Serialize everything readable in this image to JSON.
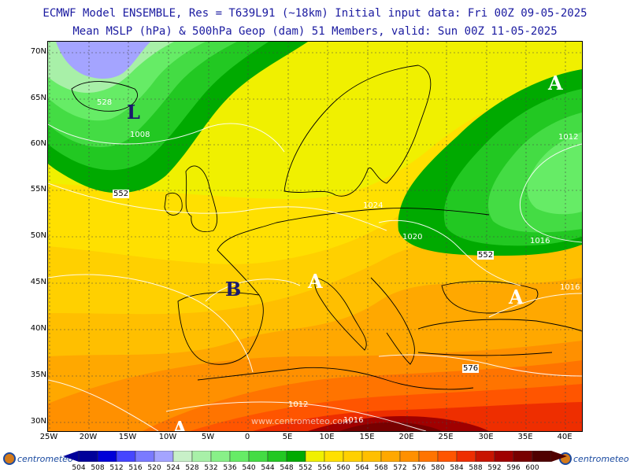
{
  "header": {
    "line1": "ECMWF Model ENSEMBLE, Res = T639L91 (~18km)  Initial input data: Fri 00Z 09-05-2025",
    "line2": "Mean MSLP (hPa) & 500hPa Geop (dam)   51 Members, valid: Sun 00Z 11-05-2025"
  },
  "lat_ticks": [
    "70N",
    "65N",
    "60N",
    "55N",
    "50N",
    "45N",
    "40N",
    "35N",
    "30N"
  ],
  "lon_ticks": [
    "25W",
    "20W",
    "15W",
    "10W",
    "5W",
    "0",
    "5E",
    "10E",
    "15E",
    "20E",
    "25E",
    "30E",
    "35E",
    "40E"
  ],
  "pressure_centers": [
    {
      "label": "L",
      "color": "#1a1a6e"
    },
    {
      "label": "B",
      "color": "#1a1a6e"
    },
    {
      "label": "A",
      "color": "#ffffff"
    },
    {
      "label": "A",
      "color": "#ffffff"
    },
    {
      "label": "A",
      "color": "#ffffff"
    },
    {
      "label": "A",
      "color": "#ffffff"
    }
  ],
  "isobar_labels": [
    "528",
    "1008",
    "552",
    "1024",
    "1020",
    "1012",
    "1016",
    "552",
    "1016",
    "1012",
    "1016",
    "576"
  ],
  "watermark": "www.centrometeo.com",
  "colorbar": {
    "values": [
      "504",
      "508",
      "512",
      "516",
      "520",
      "524",
      "528",
      "532",
      "536",
      "540",
      "544",
      "548",
      "552",
      "556",
      "560",
      "564",
      "568",
      "572",
      "576",
      "580",
      "584",
      "588",
      "592",
      "596",
      "600"
    ],
    "colors": [
      "#00009a",
      "#0000d8",
      "#4646ff",
      "#7a7aff",
      "#a4a4ff",
      "#c8f0c8",
      "#a8f0a8",
      "#88f088",
      "#66ec66",
      "#44dc44",
      "#22c822",
      "#00aa00",
      "#f0f000",
      "#ffe000",
      "#ffd000",
      "#ffbf00",
      "#ffa800",
      "#ff9000",
      "#ff7400",
      "#ff5500",
      "#ee2e00",
      "#c81400",
      "#a00000",
      "#780000",
      "#500000"
    ]
  },
  "logo": {
    "left_text": "centrometeo",
    "right_text": "centrometeo"
  }
}
